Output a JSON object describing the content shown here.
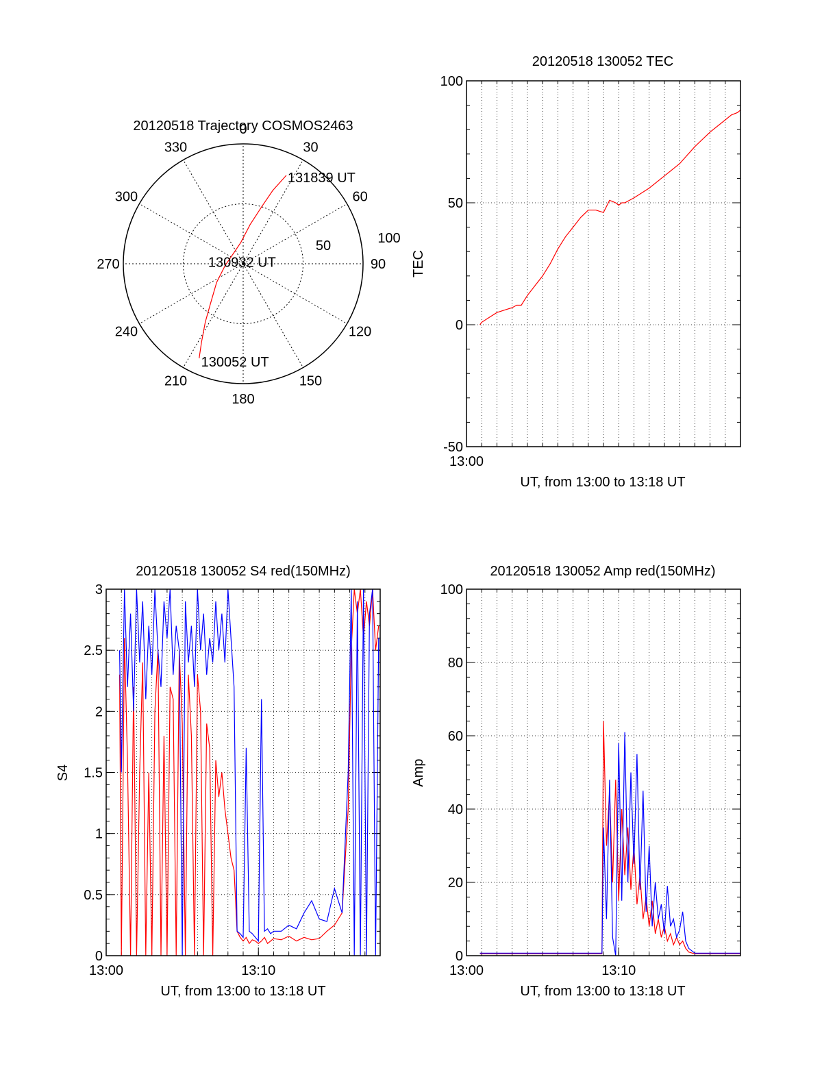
{
  "colors": {
    "red": "#ff0000",
    "blue": "#0000ff",
    "axis": "#000000",
    "grid": "#000000"
  },
  "chart_data": [
    {
      "id": "trajectory",
      "type": "polar-trajectory",
      "title": "20120518 Trajectory COSMOS2463",
      "azimuth_labels": [
        "0",
        "30",
        "60",
        "90",
        "120",
        "150",
        "180",
        "210",
        "240",
        "270",
        "300",
        "330"
      ],
      "radius_labels": [
        "50",
        "100"
      ],
      "grid": true,
      "track": {
        "color": "red",
        "points": [
          {
            "az": 205,
            "r": 87
          },
          {
            "az": 208,
            "r": 74
          },
          {
            "az": 213,
            "r": 58
          },
          {
            "az": 220,
            "r": 42
          },
          {
            "az": 235,
            "r": 27
          },
          {
            "az": 265,
            "r": 15
          },
          {
            "az": 320,
            "r": 12
          },
          {
            "az": 354,
            "r": 18
          },
          {
            "az": 10,
            "r": 33
          },
          {
            "az": 18,
            "r": 50
          },
          {
            "az": 22,
            "r": 66
          },
          {
            "az": 26,
            "r": 82
          }
        ]
      },
      "annotations": [
        {
          "text": "131839 UT",
          "at": "end"
        },
        {
          "text": "130932 UT",
          "at": "middle"
        },
        {
          "text": "130052 UT",
          "at": "start"
        }
      ]
    },
    {
      "id": "tec",
      "type": "line",
      "title": "20120518 130052 TEC",
      "xlabel": "UT, from 13:00 to 13:18 UT",
      "ylabel": "TEC",
      "xlim": [
        0,
        18
      ],
      "ylim": [
        -50,
        100
      ],
      "yticks": [
        "-50",
        "0",
        "50",
        "100"
      ],
      "xtick_labels": [
        {
          "value": 0,
          "label": "13:00"
        }
      ],
      "grid": true,
      "series": [
        {
          "color": "red",
          "x": [
            0.88,
            1.0,
            1.5,
            2.0,
            2.5,
            3.0,
            3.3,
            3.6,
            4.0,
            4.5,
            5.0,
            5.5,
            6.0,
            6.5,
            7.0,
            7.5,
            8.0,
            8.5,
            9.0,
            9.4,
            9.8,
            10.0,
            10.2,
            10.4,
            11.0,
            12.0,
            13.0,
            14.0,
            15.0,
            16.0,
            17.0,
            17.4,
            17.8,
            18.0
          ],
          "y": [
            0,
            1,
            3,
            5,
            6,
            7,
            8,
            8,
            12,
            16,
            20,
            25,
            31,
            36,
            40,
            44,
            47,
            47,
            46,
            51,
            50,
            49,
            50,
            50,
            52,
            56,
            61,
            66,
            73,
            79,
            84,
            86,
            87,
            88
          ]
        }
      ]
    },
    {
      "id": "s4",
      "type": "line",
      "title": "20120518 130052 S4 red(150MHz)",
      "xlabel": "UT, from 13:00 to 13:18 UT",
      "ylabel": "S4",
      "xlim": [
        0,
        18
      ],
      "ylim": [
        0,
        3
      ],
      "yticks": [
        "0",
        "0.5",
        "1",
        "1.5",
        "2",
        "2.5",
        "3"
      ],
      "xtick_labels": [
        {
          "value": 0,
          "label": "13:00"
        },
        {
          "value": 10,
          "label": "13:10"
        }
      ],
      "grid": true,
      "series": [
        {
          "color": "red",
          "x": [
            0.88,
            1.0,
            1.2,
            1.4,
            1.6,
            1.8,
            2.0,
            2.2,
            2.4,
            2.6,
            2.8,
            3.0,
            3.2,
            3.4,
            3.6,
            3.8,
            4.0,
            4.2,
            4.4,
            4.6,
            4.8,
            5.0,
            5.2,
            5.4,
            5.6,
            5.8,
            6.0,
            6.2,
            6.4,
            6.6,
            6.8,
            7.0,
            7.2,
            7.4,
            7.6,
            7.8,
            8.0,
            8.2,
            8.4,
            8.6,
            8.8,
            9.0,
            9.2,
            9.4,
            9.6,
            9.8,
            10.0,
            10.2,
            10.4,
            10.6,
            10.8,
            11.0,
            11.5,
            12.0,
            12.5,
            13.0,
            13.5,
            14.0,
            14.5,
            15.0,
            15.5,
            15.9,
            16.1,
            16.3,
            16.5,
            16.7,
            16.9,
            17.1,
            17.3,
            17.5,
            17.7,
            17.9
          ],
          "y": [
            2.3,
            0,
            2.6,
            1.6,
            0,
            2.2,
            0,
            1.5,
            2.4,
            0,
            1.5,
            0,
            2.0,
            2.5,
            0,
            1.8,
            0,
            2.2,
            2.1,
            0,
            2.5,
            1.9,
            0,
            2.3,
            1.8,
            0,
            2.3,
            2.0,
            0,
            1.9,
            1.7,
            0,
            1.6,
            1.3,
            1.5,
            1.2,
            1.0,
            0.8,
            0.7,
            0.2,
            0.15,
            0.12,
            0.15,
            0.1,
            0.13,
            0.12,
            0.1,
            0.12,
            0.15,
            0.1,
            0.12,
            0.14,
            0.13,
            0.16,
            0.12,
            0.15,
            0.13,
            0.14,
            0.2,
            0.25,
            0.35,
            1.2,
            2.5,
            3.0,
            2.8,
            3.0,
            2.6,
            2.9,
            2.7,
            3.0,
            2.5,
            2.7
          ]
        },
        {
          "color": "blue",
          "x": [
            0.88,
            1.0,
            1.2,
            1.4,
            1.6,
            1.8,
            2.0,
            2.2,
            2.4,
            2.6,
            2.8,
            3.0,
            3.2,
            3.4,
            3.6,
            3.8,
            4.0,
            4.2,
            4.4,
            4.6,
            4.8,
            5.0,
            5.2,
            5.4,
            5.6,
            5.8,
            6.0,
            6.2,
            6.4,
            6.6,
            6.8,
            7.0,
            7.2,
            7.4,
            7.6,
            7.8,
            8.0,
            8.2,
            8.4,
            8.6,
            8.8,
            9.0,
            9.2,
            9.4,
            9.6,
            9.8,
            10.0,
            10.2,
            10.4,
            10.6,
            10.8,
            11.0,
            11.5,
            12.0,
            12.5,
            13.0,
            13.5,
            14.0,
            14.5,
            15.0,
            15.5,
            15.9,
            16.1,
            16.3,
            16.5,
            16.7,
            16.9,
            17.1,
            17.3,
            17.5,
            17.7,
            17.9
          ],
          "y": [
            2.5,
            1.5,
            3.0,
            2.2,
            2.8,
            2.0,
            3.0,
            2.4,
            2.9,
            2.1,
            2.7,
            2.3,
            3.0,
            2.5,
            2.2,
            2.9,
            2.6,
            3.0,
            2.3,
            2.7,
            2.5,
            0,
            2.9,
            2.4,
            2.7,
            2.2,
            3.0,
            2.5,
            2.8,
            2.3,
            2.6,
            2.4,
            2.9,
            2.5,
            2.8,
            2.4,
            3.0,
            2.6,
            2.2,
            0.2,
            0.18,
            0.15,
            1.7,
            0.2,
            0.18,
            0.15,
            0.12,
            2.1,
            0.2,
            0.22,
            0.18,
            0.2,
            0.2,
            0.25,
            0.22,
            0.35,
            0.45,
            0.3,
            0.28,
            0.55,
            0.35,
            1.5,
            3.0,
            0,
            2.9,
            0,
            3.0,
            0,
            2.8,
            3.0,
            0,
            2.6
          ]
        }
      ]
    },
    {
      "id": "amp",
      "type": "line",
      "title": "20120518 130052 Amp red(150MHz)",
      "xlabel": "UT, from 13:00 to 13:18 UT",
      "ylabel": "Amp",
      "xlim": [
        0,
        18
      ],
      "ylim": [
        0,
        100
      ],
      "yticks": [
        "0",
        "20",
        "40",
        "60",
        "80",
        "100"
      ],
      "xtick_labels": [
        {
          "value": 0,
          "label": "13:00"
        },
        {
          "value": 10,
          "label": "13:10"
        }
      ],
      "grid": true,
      "series": [
        {
          "color": "red",
          "x": [
            0.88,
            2.0,
            4.0,
            6.0,
            8.0,
            8.9,
            9.0,
            9.2,
            9.4,
            9.6,
            9.8,
            10.0,
            10.2,
            10.4,
            10.6,
            10.8,
            11.0,
            11.2,
            11.4,
            11.6,
            11.8,
            12.0,
            12.2,
            12.4,
            12.6,
            12.8,
            13.0,
            13.2,
            13.4,
            13.6,
            13.8,
            14.0,
            14.2,
            14.4,
            14.6,
            15.0,
            16.0,
            18.0
          ],
          "y": [
            0.5,
            0.5,
            0.5,
            0.5,
            0.5,
            0.5,
            64,
            30,
            45,
            20,
            48,
            15,
            40,
            22,
            35,
            18,
            30,
            14,
            22,
            10,
            16,
            8,
            15,
            6,
            10,
            5,
            8,
            4,
            6,
            3,
            5,
            3,
            4,
            2,
            1,
            0.5,
            0.5,
            0.5
          ]
        },
        {
          "color": "blue",
          "x": [
            0.88,
            2.0,
            4.0,
            6.0,
            8.0,
            8.9,
            9.0,
            9.2,
            9.4,
            9.6,
            9.8,
            10.0,
            10.2,
            10.4,
            10.6,
            10.8,
            11.0,
            11.2,
            11.4,
            11.6,
            11.8,
            12.0,
            12.2,
            12.4,
            12.6,
            12.8,
            13.0,
            13.2,
            13.4,
            13.6,
            13.8,
            14.0,
            14.2,
            14.4,
            14.6,
            15.0,
            16.0,
            18.0
          ],
          "y": [
            0.7,
            0.7,
            0.7,
            0.7,
            0.7,
            0.7,
            35,
            10,
            48,
            5,
            0,
            58,
            15,
            61,
            20,
            50,
            25,
            55,
            18,
            45,
            12,
            30,
            8,
            20,
            10,
            14,
            6,
            19,
            8,
            10,
            5,
            7,
            12,
            4,
            2,
            0.7,
            0.7,
            0.7
          ]
        }
      ]
    }
  ]
}
